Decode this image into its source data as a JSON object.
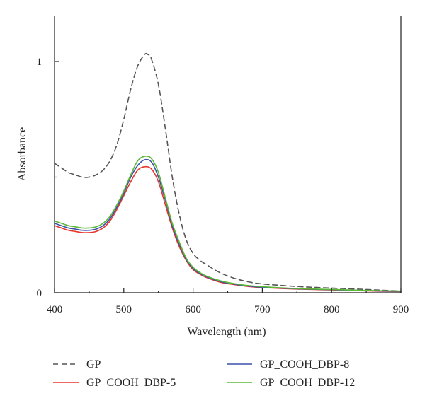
{
  "chart_data": {
    "type": "line",
    "xlabel": "Wavelength (nm)",
    "ylabel": "Absorbance",
    "xlim": [
      400,
      900
    ],
    "ylim": [
      0,
      1.2
    ],
    "x_ticks": [
      "400",
      "500",
      "600",
      "700",
      "800",
      "900"
    ],
    "y_ticks": [
      "0",
      "1"
    ],
    "grid": false,
    "legend_position": "bottom",
    "series": [
      {
        "name": "GP",
        "color": "#555555",
        "dash": "dashed",
        "points": [
          [
            400,
            0.56
          ],
          [
            410,
            0.54
          ],
          [
            420,
            0.52
          ],
          [
            430,
            0.51
          ],
          [
            440,
            0.5
          ],
          [
            450,
            0.5
          ],
          [
            460,
            0.51
          ],
          [
            470,
            0.53
          ],
          [
            480,
            0.57
          ],
          [
            490,
            0.64
          ],
          [
            500,
            0.75
          ],
          [
            510,
            0.88
          ],
          [
            520,
            0.98
          ],
          [
            530,
            1.03
          ],
          [
            535,
            1.03
          ],
          [
            540,
            1.01
          ],
          [
            550,
            0.9
          ],
          [
            560,
            0.71
          ],
          [
            570,
            0.5
          ],
          [
            580,
            0.34
          ],
          [
            590,
            0.23
          ],
          [
            600,
            0.17
          ],
          [
            610,
            0.14
          ],
          [
            620,
            0.12
          ],
          [
            640,
            0.085
          ],
          [
            660,
            0.062
          ],
          [
            680,
            0.047
          ],
          [
            700,
            0.038
          ],
          [
            750,
            0.027
          ],
          [
            800,
            0.02
          ],
          [
            850,
            0.014
          ],
          [
            900,
            0.007
          ]
        ]
      },
      {
        "name": "GP_COOH_DBP-5",
        "color": "#e8352b",
        "dash": "solid",
        "points": [
          [
            400,
            0.29
          ],
          [
            410,
            0.28
          ],
          [
            420,
            0.27
          ],
          [
            430,
            0.265
          ],
          [
            440,
            0.26
          ],
          [
            450,
            0.26
          ],
          [
            460,
            0.265
          ],
          [
            470,
            0.28
          ],
          [
            480,
            0.31
          ],
          [
            490,
            0.36
          ],
          [
            500,
            0.42
          ],
          [
            510,
            0.48
          ],
          [
            520,
            0.53
          ],
          [
            530,
            0.545
          ],
          [
            540,
            0.535
          ],
          [
            550,
            0.48
          ],
          [
            560,
            0.38
          ],
          [
            570,
            0.28
          ],
          [
            580,
            0.2
          ],
          [
            590,
            0.14
          ],
          [
            600,
            0.1
          ],
          [
            610,
            0.08
          ],
          [
            620,
            0.065
          ],
          [
            640,
            0.045
          ],
          [
            660,
            0.035
          ],
          [
            680,
            0.027
          ],
          [
            700,
            0.022
          ],
          [
            750,
            0.016
          ],
          [
            800,
            0.012
          ],
          [
            850,
            0.008
          ],
          [
            900,
            0.005
          ]
        ]
      },
      {
        "name": "GP_COOH_DBP-8",
        "color": "#3a52a8",
        "dash": "solid",
        "points": [
          [
            400,
            0.3
          ],
          [
            410,
            0.29
          ],
          [
            420,
            0.28
          ],
          [
            430,
            0.275
          ],
          [
            440,
            0.27
          ],
          [
            450,
            0.27
          ],
          [
            460,
            0.275
          ],
          [
            470,
            0.29
          ],
          [
            480,
            0.32
          ],
          [
            490,
            0.37
          ],
          [
            500,
            0.43
          ],
          [
            510,
            0.5
          ],
          [
            520,
            0.55
          ],
          [
            530,
            0.575
          ],
          [
            540,
            0.565
          ],
          [
            550,
            0.5
          ],
          [
            560,
            0.4
          ],
          [
            570,
            0.29
          ],
          [
            580,
            0.21
          ],
          [
            590,
            0.145
          ],
          [
            600,
            0.105
          ],
          [
            610,
            0.083
          ],
          [
            620,
            0.068
          ],
          [
            640,
            0.048
          ],
          [
            660,
            0.037
          ],
          [
            680,
            0.029
          ],
          [
            700,
            0.024
          ],
          [
            750,
            0.017
          ],
          [
            800,
            0.013
          ],
          [
            850,
            0.009
          ],
          [
            900,
            0.006
          ]
        ]
      },
      {
        "name": "GP_COOH_DBP-12",
        "color": "#5cb835",
        "dash": "solid",
        "points": [
          [
            400,
            0.31
          ],
          [
            410,
            0.3
          ],
          [
            420,
            0.29
          ],
          [
            430,
            0.285
          ],
          [
            440,
            0.28
          ],
          [
            450,
            0.28
          ],
          [
            460,
            0.285
          ],
          [
            470,
            0.3
          ],
          [
            480,
            0.33
          ],
          [
            490,
            0.38
          ],
          [
            500,
            0.44
          ],
          [
            510,
            0.51
          ],
          [
            520,
            0.57
          ],
          [
            530,
            0.59
          ],
          [
            540,
            0.58
          ],
          [
            550,
            0.52
          ],
          [
            560,
            0.41
          ],
          [
            570,
            0.3
          ],
          [
            580,
            0.22
          ],
          [
            590,
            0.15
          ],
          [
            600,
            0.11
          ],
          [
            610,
            0.087
          ],
          [
            620,
            0.071
          ],
          [
            640,
            0.051
          ],
          [
            660,
            0.039
          ],
          [
            680,
            0.031
          ],
          [
            700,
            0.026
          ],
          [
            750,
            0.018
          ],
          [
            800,
            0.014
          ],
          [
            850,
            0.01
          ],
          [
            900,
            0.007
          ]
        ]
      }
    ]
  }
}
